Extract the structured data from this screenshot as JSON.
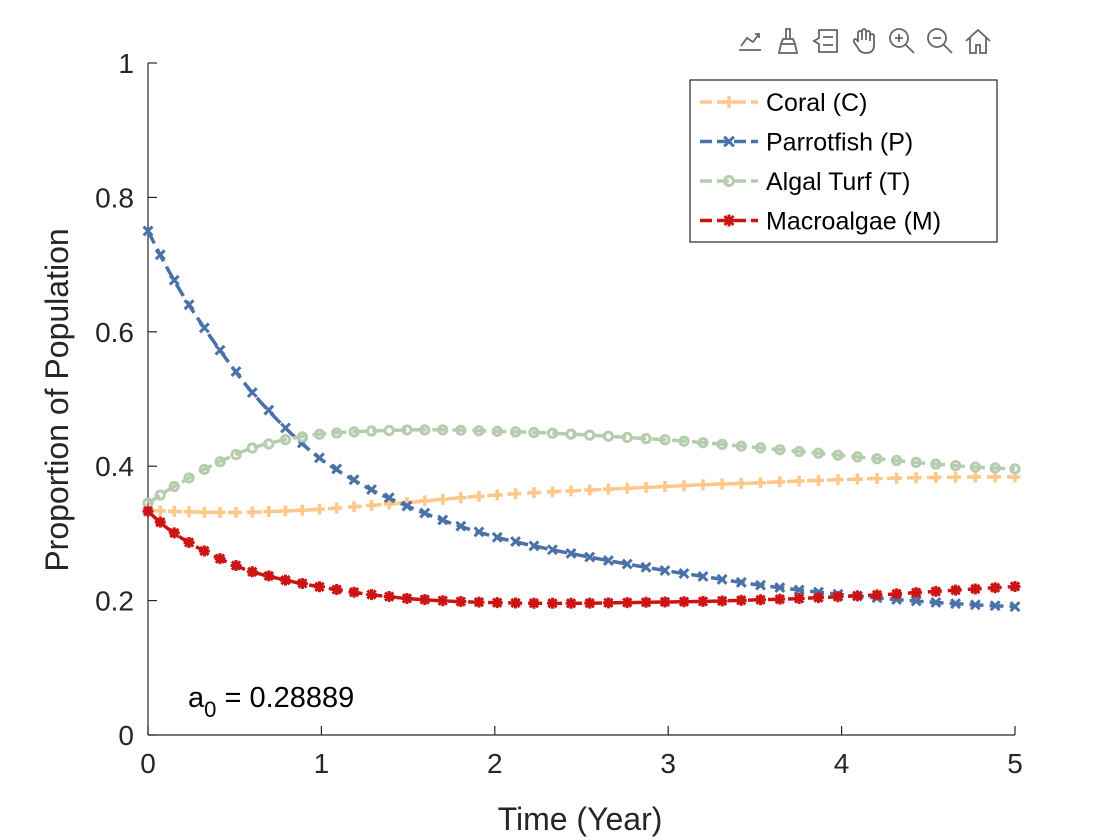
{
  "toolbar": {
    "items": [
      {
        "name": "export-icon"
      },
      {
        "name": "brush-icon"
      },
      {
        "name": "datatip-icon"
      },
      {
        "name": "pan-hand-icon"
      },
      {
        "name": "zoom-in-icon"
      },
      {
        "name": "zoom-out-icon"
      },
      {
        "name": "home-icon"
      }
    ]
  },
  "chart_data": {
    "type": "line",
    "xlabel": "Time (Year)",
    "ylabel": "Proportion of Population",
    "xlim": [
      0,
      5
    ],
    "ylim": [
      0,
      1
    ],
    "xticks": [
      "0",
      "1",
      "2",
      "3",
      "4",
      "5"
    ],
    "yticks": [
      "0",
      "0.2",
      "0.4",
      "0.6",
      "0.8",
      "1"
    ],
    "grid": false,
    "legend_position": "top-right",
    "annotation": {
      "text_main": "a",
      "text_sub": "0",
      "text_rest": " = 0.28889"
    },
    "series": [
      {
        "name": "Coral (C)",
        "color": "#FFC88A",
        "marker": "plus",
        "x": [
          0,
          0.25,
          0.5,
          0.75,
          1.0,
          1.25,
          1.5,
          1.75,
          2.0,
          2.25,
          2.5,
          2.75,
          3.0,
          3.25,
          3.5,
          3.75,
          4.0,
          4.25,
          4.5,
          4.75,
          5.0
        ],
        "y": [
          0.334,
          0.332,
          0.331,
          0.333,
          0.336,
          0.341,
          0.346,
          0.352,
          0.357,
          0.361,
          0.364,
          0.367,
          0.37,
          0.373,
          0.375,
          0.378,
          0.38,
          0.382,
          0.383,
          0.384,
          0.384
        ]
      },
      {
        "name": "Parrotfish (P)",
        "color": "#4A72A8",
        "marker": "x",
        "x": [
          0,
          0.1,
          0.2,
          0.3,
          0.45,
          0.6,
          0.8,
          1.0,
          1.25,
          1.5,
          1.75,
          2.0,
          2.25,
          2.5,
          2.75,
          3.0,
          3.25,
          3.5,
          3.75,
          4.0,
          4.25,
          4.5,
          4.75,
          5.0
        ],
        "y": [
          0.75,
          0.7,
          0.655,
          0.615,
          0.56,
          0.51,
          0.455,
          0.41,
          0.37,
          0.34,
          0.315,
          0.295,
          0.28,
          0.267,
          0.255,
          0.244,
          0.234,
          0.224,
          0.216,
          0.209,
          0.203,
          0.198,
          0.194,
          0.191
        ]
      },
      {
        "name": "Algal Turf (T)",
        "color": "#B5CDAE",
        "marker": "circle",
        "x": [
          0,
          0.1,
          0.2,
          0.3,
          0.45,
          0.6,
          0.8,
          1.0,
          1.25,
          1.5,
          1.75,
          2.0,
          2.25,
          2.5,
          2.75,
          3.0,
          3.25,
          3.5,
          3.75,
          4.0,
          4.25,
          4.5,
          4.75,
          5.0
        ],
        "y": [
          0.345,
          0.362,
          0.377,
          0.392,
          0.411,
          0.427,
          0.44,
          0.448,
          0.452,
          0.454,
          0.454,
          0.452,
          0.45,
          0.447,
          0.443,
          0.439,
          0.434,
          0.428,
          0.422,
          0.416,
          0.41,
          0.404,
          0.399,
          0.396
        ]
      },
      {
        "name": "Macroalgae (M)",
        "color": "#CC1414",
        "marker": "asterisk",
        "x": [
          0,
          0.1,
          0.2,
          0.3,
          0.45,
          0.6,
          0.8,
          1.0,
          1.25,
          1.5,
          1.75,
          2.0,
          2.25,
          2.5,
          2.75,
          3.0,
          3.25,
          3.5,
          3.75,
          4.0,
          4.25,
          4.5,
          4.75,
          5.0
        ],
        "y": [
          0.333,
          0.31,
          0.292,
          0.277,
          0.258,
          0.243,
          0.23,
          0.22,
          0.21,
          0.203,
          0.199,
          0.197,
          0.196,
          0.196,
          0.197,
          0.198,
          0.199,
          0.201,
          0.203,
          0.206,
          0.209,
          0.213,
          0.217,
          0.221
        ]
      }
    ]
  }
}
